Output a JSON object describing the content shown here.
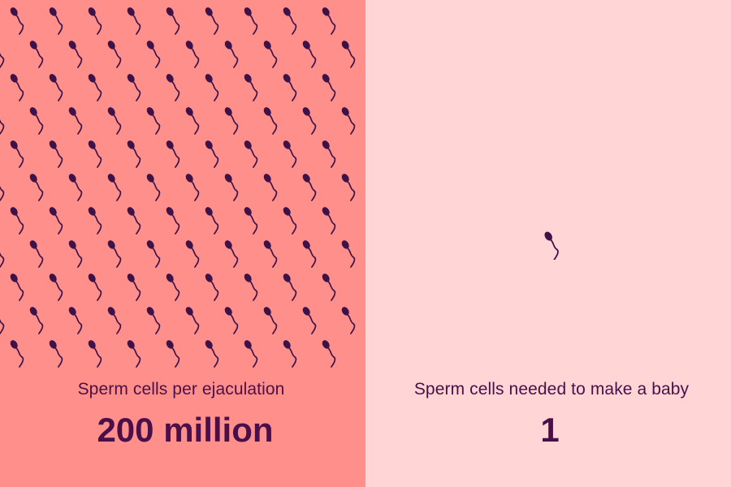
{
  "colors": {
    "left_background": "#ff8f8a",
    "right_background": "#ffd5d6",
    "text": "#4a0f4a",
    "sperm": "#3d1248"
  },
  "icons": {
    "swarm": "sperm-icon",
    "single": "sperm-icon"
  },
  "left_panel": {
    "caption": "Sperm cells per ejaculation",
    "value": "200 million"
  },
  "right_panel": {
    "caption": "Sperm cells needed to make a baby",
    "value": "1"
  }
}
